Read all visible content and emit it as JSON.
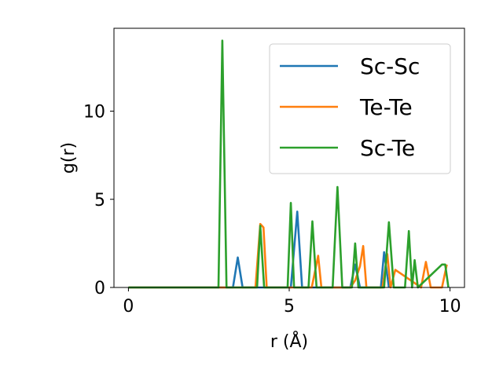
{
  "chart_data": {
    "type": "line",
    "xlabel": "r (Å)",
    "ylabel": "g(r)",
    "xlim": [
      -0.45,
      10.45
    ],
    "ylim": [
      0,
      14.7
    ],
    "xticks": [
      0,
      5,
      10
    ],
    "yticks": [
      0,
      5,
      10
    ],
    "grid": false,
    "legend_position": "top-right",
    "series": [
      {
        "name": "Sc-Sc",
        "color": "#1f77b4",
        "x": [
          0,
          3.25,
          3.4,
          3.55,
          5.05,
          5.25,
          5.4,
          6.9,
          7.05,
          7.2,
          7.85,
          7.95,
          8.1
        ],
        "y": [
          0,
          0,
          1.7,
          0,
          0,
          4.3,
          0,
          0,
          1.3,
          0,
          0,
          2.0,
          0
        ]
      },
      {
        "name": "Te-Te",
        "color": "#ff7f0e",
        "x": [
          0,
          3.95,
          4.1,
          4.2,
          4.3,
          5.7,
          5.9,
          6.0,
          6.9,
          7.05,
          7.2,
          7.3,
          7.4,
          7.9,
          8.05,
          8.15,
          8.3,
          9.1,
          9.25,
          9.4,
          9.75,
          9.9
        ],
        "y": [
          0,
          0,
          3.6,
          3.4,
          0,
          0,
          1.8,
          0,
          0,
          0.4,
          1.2,
          2.35,
          0,
          0,
          1.9,
          0,
          1.0,
          0,
          1.45,
          0,
          0,
          1.3
        ]
      },
      {
        "name": "Sc-Te",
        "color": "#2ca02c",
        "x": [
          0,
          2.8,
          2.92,
          3.05,
          4.0,
          4.1,
          4.22,
          4.95,
          5.05,
          5.15,
          5.6,
          5.72,
          5.85,
          6.35,
          6.5,
          6.65,
          6.95,
          7.05,
          7.15,
          7.95,
          8.1,
          8.25,
          8.6,
          8.72,
          8.82,
          8.9,
          9.0,
          9.75,
          9.85,
          9.95
        ],
        "y": [
          0,
          0,
          14.0,
          0,
          0,
          3.5,
          0,
          0,
          4.8,
          0,
          0,
          3.75,
          0,
          0,
          5.7,
          0,
          0,
          2.5,
          0,
          0,
          3.7,
          0,
          0,
          3.2,
          0,
          1.55,
          0,
          1.3,
          1.3,
          0
        ]
      }
    ]
  }
}
